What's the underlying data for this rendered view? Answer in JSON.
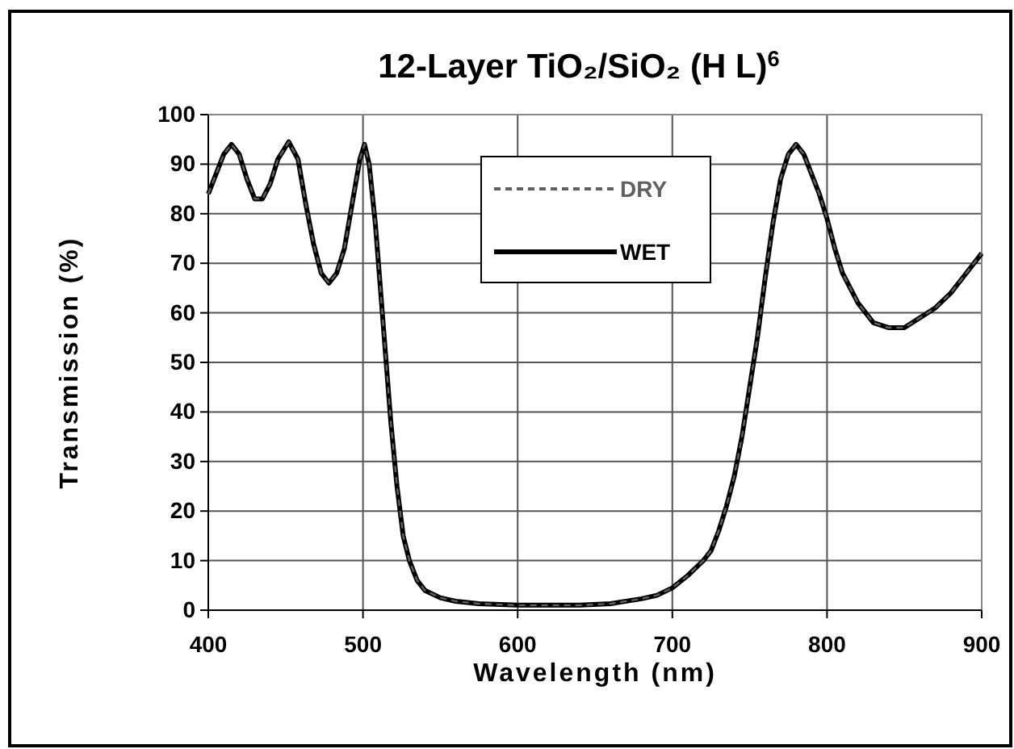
{
  "chart_data": {
    "type": "line",
    "title": "12-Layer TiO₂/SiO₂ (H L)$^{6}$",
    "xlabel": "Wavelength (nm)",
    "ylabel": "Transmission (%)",
    "x": [
      400,
      405,
      410,
      415,
      420,
      425,
      430,
      435,
      440,
      445,
      452,
      458,
      463,
      468,
      473,
      478,
      483,
      488,
      493,
      498,
      501,
      504,
      508,
      512,
      515,
      518,
      522,
      526,
      530,
      535,
      540,
      550,
      560,
      575,
      600,
      620,
      640,
      660,
      680,
      690,
      700,
      710,
      720,
      725,
      730,
      735,
      740,
      745,
      750,
      755,
      760,
      765,
      770,
      775,
      780,
      785,
      790,
      795,
      800,
      805,
      810,
      815,
      820,
      825,
      830,
      840,
      850,
      860,
      870,
      880,
      890,
      900
    ],
    "series": [
      {
        "name": "WET",
        "color": "#000000",
        "line_style": "solid",
        "values": [
          84,
          88,
          92,
          94,
          92,
          87,
          83,
          83,
          86,
          91,
          94.5,
          91,
          82,
          74,
          68,
          66,
          68,
          73,
          82,
          91,
          94,
          90,
          78,
          62,
          50,
          38,
          25,
          15,
          10,
          6,
          4,
          2.5,
          1.8,
          1.3,
          1,
          1,
          1,
          1.3,
          2.3,
          3,
          4.5,
          7,
          10,
          12,
          16,
          21,
          27,
          35,
          45,
          55,
          67,
          78,
          87,
          92,
          94,
          92,
          88,
          84,
          79,
          73,
          68,
          65,
          62,
          60,
          58,
          57,
          57,
          59,
          61,
          64,
          68,
          72
        ]
      },
      {
        "name": "DRY",
        "color": "#606060",
        "line_style": "dashed",
        "values": [
          84,
          88,
          92,
          94,
          92,
          87,
          83,
          83,
          86,
          91,
          94.5,
          91,
          82,
          74,
          68,
          66,
          68,
          73,
          82,
          91,
          94,
          90,
          78,
          62,
          50,
          38,
          25,
          15,
          10,
          6,
          4,
          2.5,
          1.8,
          1.3,
          1,
          1,
          1,
          1.3,
          2.3,
          3,
          4.5,
          7,
          10,
          12,
          16,
          21,
          27,
          35,
          45,
          55,
          67,
          78,
          87,
          92,
          94,
          92,
          88,
          84,
          79,
          73,
          68,
          65,
          62,
          60,
          58,
          57,
          57,
          59,
          61,
          64,
          68,
          72
        ]
      }
    ],
    "xlim": [
      400,
      900
    ],
    "xticks": [
      400,
      500,
      600,
      700,
      800,
      900
    ],
    "ylim": [
      0,
      100
    ],
    "yticks": [
      0,
      10,
      20,
      30,
      40,
      50,
      60,
      70,
      80,
      90,
      100
    ],
    "grid": true,
    "legend": "top",
    "marker": "none"
  }
}
